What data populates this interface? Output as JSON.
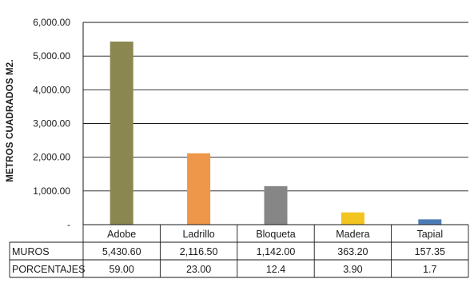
{
  "chart_data": {
    "type": "bar",
    "ylabel": "METROS CUADRADOS M2.",
    "ylim": [
      0,
      6000
    ],
    "yticks": [
      {
        "value": 0,
        "label": "-"
      },
      {
        "value": 1000,
        "label": "1,000.00"
      },
      {
        "value": 2000,
        "label": "2,000.00"
      },
      {
        "value": 3000,
        "label": "3,000.00"
      },
      {
        "value": 4000,
        "label": "4,000.00"
      },
      {
        "value": 5000,
        "label": "5,000.00"
      },
      {
        "value": 6000,
        "label": "6,000.00"
      }
    ],
    "grid": true,
    "categories": [
      "Adobe",
      "Ladrillo",
      "Bloqueta",
      "Madera",
      "Tapial"
    ],
    "colors": [
      "#8b8750",
      "#ee9649",
      "#868686",
      "#f3c420",
      "#4d7cb5"
    ],
    "series": [
      {
        "name": "MUROS",
        "values": [
          5430.6,
          2116.5,
          1142.0,
          363.2,
          157.35
        ]
      }
    ],
    "table": {
      "rows": [
        {
          "label": "MUROS",
          "cells": [
            "5,430.60",
            "2,116.50",
            "1,142.00",
            "363.20",
            "157.35"
          ]
        },
        {
          "label": "PORCENTAJES",
          "cells": [
            "59.00",
            "23.00",
            "12.4",
            "3.90",
            "1.7"
          ]
        }
      ]
    }
  }
}
